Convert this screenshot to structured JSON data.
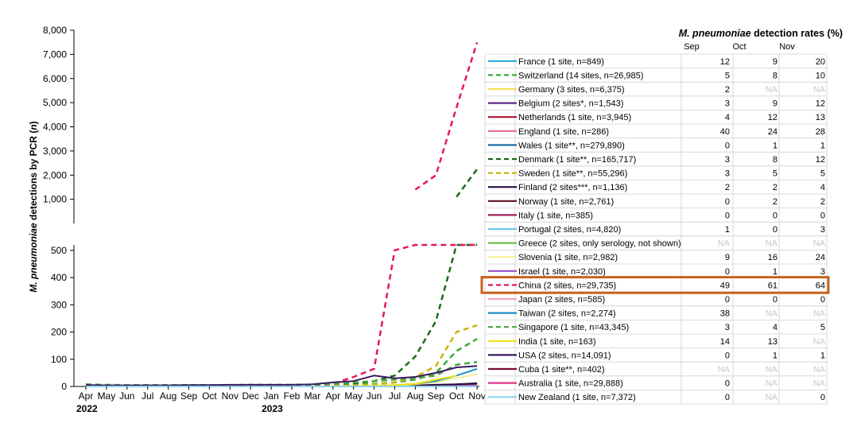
{
  "chart_data": {
    "type": "line",
    "ylabel_italic": "M. pneumoniae",
    "ylabel_rest": " detections by PCR (",
    "ylabel_n": "n",
    "ylabel_close": ")",
    "x_labels": [
      "Apr",
      "May",
      "Jun",
      "Jul",
      "Aug",
      "Sep",
      "Oct",
      "Nov",
      "Dec",
      "Jan",
      "Feb",
      "Mar",
      "Apr",
      "May",
      "Jun",
      "Jul",
      "Aug",
      "Sep",
      "Oct",
      "Nov"
    ],
    "year_labels": [
      {
        "label": "2022",
        "index": 0
      },
      {
        "label": "2023",
        "index": 9
      }
    ],
    "y_upper": {
      "range": [
        0,
        8000
      ],
      "ticks": [
        "8,000",
        "7,000",
        "6,000",
        "5,000",
        "4,000",
        "3,000",
        "2,000",
        "1,000"
      ],
      "tick_values": [
        8000,
        7000,
        6000,
        5000,
        4000,
        3000,
        2000,
        1000
      ]
    },
    "y_lower": {
      "range": [
        0,
        520
      ],
      "ticks": [
        "500",
        "400",
        "300",
        "200",
        "100",
        "0"
      ],
      "tick_values": [
        500,
        400,
        300,
        200,
        100,
        0
      ]
    },
    "table": {
      "title_italic": "M. pneumoniae",
      "title_rest": " detection rates (%)",
      "months": [
        "Sep",
        "Oct",
        "Nov"
      ]
    },
    "series": [
      {
        "name": "France (1 site, n=849)",
        "color": "#27a9e1",
        "dash": false,
        "rates": [
          "12",
          "9",
          "20"
        ],
        "values": [
          0,
          0,
          0,
          0,
          0,
          0,
          0,
          0,
          0,
          0,
          0,
          0,
          0,
          0,
          0,
          0,
          0,
          1,
          2,
          5
        ]
      },
      {
        "name": "Switzerland (14 sites, n=26,985)",
        "color": "#3aaa35",
        "dash": true,
        "rates": [
          "5",
          "8",
          "10"
        ],
        "values": [
          2,
          2,
          2,
          2,
          2,
          3,
          3,
          4,
          4,
          5,
          5,
          6,
          7,
          8,
          10,
          15,
          25,
          50,
          130,
          175
        ]
      },
      {
        "name": "Germany (3 sites, n=6,375)",
        "color": "#f2e15a",
        "dash": false,
        "rates": [
          "2",
          "NA",
          "NA"
        ],
        "values": [
          0,
          0,
          0,
          0,
          0,
          0,
          0,
          0,
          0,
          0,
          0,
          0,
          0,
          0,
          0,
          0,
          1,
          2,
          null,
          null
        ]
      },
      {
        "name": "Belgium (2 sites*, n=1,543)",
        "color": "#5b2a86",
        "dash": false,
        "rates": [
          "3",
          "9",
          "12"
        ],
        "values": [
          0,
          0,
          0,
          0,
          0,
          0,
          0,
          0,
          0,
          0,
          0,
          0,
          0,
          0,
          0,
          0,
          0,
          2,
          5,
          12
        ]
      },
      {
        "name": "Netherlands (1 site, n=3,945)",
        "color": "#b0122f",
        "dash": false,
        "rates": [
          "4",
          "12",
          "13"
        ],
        "values": [
          0,
          0,
          0,
          0,
          0,
          0,
          0,
          0,
          0,
          0,
          0,
          0,
          0,
          0,
          0,
          0,
          1,
          3,
          8,
          10
        ]
      },
      {
        "name": "England (1 site, n=286)",
        "color": "#e6679a",
        "dash": false,
        "rates": [
          "40",
          "24",
          "28"
        ],
        "values": [
          0,
          0,
          0,
          0,
          0,
          0,
          0,
          0,
          0,
          0,
          0,
          0,
          0,
          0,
          0,
          0,
          0,
          1,
          2,
          3
        ]
      },
      {
        "name": "Wales (1 site**, n=279,890)",
        "color": "#1d6fa5",
        "dash": false,
        "rates": [
          "0",
          "1",
          "1"
        ],
        "values": [
          0,
          0,
          0,
          0,
          0,
          0,
          0,
          0,
          0,
          0,
          0,
          0,
          0,
          0,
          0,
          0,
          0,
          0,
          1,
          1
        ]
      },
      {
        "name": "Denmark (1 site**, n=165,717)",
        "color": "#1e6b1a",
        "dash": true,
        "rates": [
          "3",
          "8",
          "12"
        ],
        "values": [
          2,
          2,
          2,
          2,
          3,
          3,
          3,
          3,
          4,
          4,
          4,
          5,
          6,
          10,
          20,
          40,
          110,
          240,
          1100,
          2250
        ]
      },
      {
        "name": "Sweden (1 site**, n=55,296)",
        "color": "#c9b50c",
        "dash": true,
        "rates": [
          "3",
          "5",
          "5"
        ],
        "values": [
          1,
          1,
          1,
          1,
          1,
          1,
          1,
          2,
          2,
          2,
          2,
          3,
          3,
          4,
          8,
          15,
          35,
          75,
          200,
          225
        ]
      },
      {
        "name": "Finland (2 sites***, n=1,136)",
        "color": "#2a0f3f",
        "dash": false,
        "rates": [
          "2",
          "2",
          "4"
        ],
        "values": [
          0,
          0,
          0,
          0,
          0,
          0,
          0,
          0,
          0,
          0,
          0,
          0,
          0,
          0,
          1,
          2,
          4,
          6,
          8,
          12
        ]
      },
      {
        "name": "Norway (1 site, n=2,761)",
        "color": "#5e1220",
        "dash": false,
        "rates": [
          "0",
          "2",
          "2"
        ],
        "values": [
          0,
          0,
          0,
          0,
          0,
          0,
          0,
          0,
          0,
          0,
          0,
          0,
          0,
          0,
          0,
          0,
          0,
          0,
          1,
          2
        ]
      },
      {
        "name": "Italy (1 site, n=385)",
        "color": "#a41e5a",
        "dash": false,
        "rates": [
          "0",
          "0",
          "0"
        ],
        "values": [
          0,
          0,
          0,
          0,
          0,
          0,
          0,
          0,
          0,
          0,
          0,
          0,
          0,
          0,
          0,
          0,
          0,
          0,
          0,
          0
        ]
      },
      {
        "name": "Portugal (2 sites, n=4,820)",
        "color": "#6ec6e8",
        "dash": false,
        "rates": [
          "1",
          "0",
          "3"
        ],
        "values": [
          0,
          0,
          0,
          0,
          0,
          0,
          0,
          0,
          0,
          0,
          0,
          0,
          0,
          0,
          0,
          0,
          0,
          0,
          0,
          1
        ]
      },
      {
        "name": "Greece (2 sites, only serology, not shown)",
        "color": "#6cc24a",
        "dash": false,
        "rates": [
          "NA",
          "NA",
          "NA"
        ],
        "values": []
      },
      {
        "name": "Slovenia (1 site, n=2,982)",
        "color": "#f7ef99",
        "dash": false,
        "rates": [
          "9",
          "16",
          "24"
        ],
        "values": [
          0,
          0,
          0,
          0,
          0,
          0,
          0,
          0,
          0,
          0,
          0,
          0,
          1,
          1,
          2,
          3,
          8,
          15,
          30,
          45
        ]
      },
      {
        "name": "Israel (1 site, n=2,030)",
        "color": "#9a4fc6",
        "dash": false,
        "rates": [
          "0",
          "1",
          "3"
        ],
        "values": [
          0,
          0,
          0,
          0,
          0,
          0,
          0,
          0,
          0,
          0,
          0,
          0,
          0,
          0,
          0,
          0,
          0,
          0,
          1,
          3
        ]
      },
      {
        "name": "China (2 sites, n=29,735)",
        "color": "#e8175d",
        "dash": true,
        "rates": [
          "49",
          "61",
          "64"
        ],
        "values": [
          2,
          2,
          2,
          2,
          2,
          2,
          2,
          2,
          2,
          2,
          2,
          2,
          10,
          35,
          65,
          500,
          1400,
          2000,
          4800,
          7500
        ]
      },
      {
        "name": "Japan (2 sites, n=585)",
        "color": "#f3a3c2",
        "dash": false,
        "rates": [
          "0",
          "0",
          "0"
        ],
        "values": [
          0,
          0,
          0,
          0,
          0,
          0,
          0,
          0,
          0,
          0,
          0,
          0,
          0,
          0,
          0,
          0,
          0,
          0,
          0,
          0
        ]
      },
      {
        "name": "Taiwan (2 sites, n=2,274)",
        "color": "#1b8fc9",
        "dash": false,
        "rates": [
          "38",
          "NA",
          "NA"
        ],
        "values": [
          0,
          0,
          0,
          0,
          0,
          0,
          0,
          0,
          0,
          0,
          0,
          0,
          0,
          1,
          2,
          5,
          10,
          20,
          40,
          65
        ]
      },
      {
        "name": "Singapore (1 site, n=43,345)",
        "color": "#46a93c",
        "dash": true,
        "rates": [
          "3",
          "4",
          "5"
        ],
        "values": [
          8,
          6,
          5,
          5,
          5,
          5,
          5,
          5,
          6,
          6,
          6,
          7,
          10,
          15,
          20,
          25,
          30,
          40,
          80,
          90
        ]
      },
      {
        "name": "India (1 site, n=163)",
        "color": "#f4e414",
        "dash": false,
        "rates": [
          "14",
          "13",
          "NA"
        ],
        "values": [
          0,
          0,
          0,
          0,
          0,
          0,
          0,
          0,
          0,
          0,
          0,
          0,
          0,
          1,
          2,
          5,
          10,
          25,
          40,
          null
        ]
      },
      {
        "name": "USA (2 sites, n=14,091)",
        "color": "#3b1a5e",
        "dash": false,
        "rates": [
          "0",
          "1",
          "1"
        ],
        "values": [
          5,
          4,
          4,
          4,
          4,
          5,
          5,
          6,
          6,
          6,
          6,
          8,
          15,
          20,
          40,
          30,
          35,
          50,
          70,
          75
        ]
      },
      {
        "name": "Cuba (1 site**, n=402)",
        "color": "#7a0f2b",
        "dash": false,
        "rates": [
          "NA",
          "NA",
          "NA"
        ],
        "values": [
          0,
          0,
          0,
          0,
          0,
          0,
          0,
          0,
          0,
          0,
          0,
          0,
          0,
          0,
          0,
          0,
          0,
          0,
          null,
          null
        ]
      },
      {
        "name": "Australia (1 site, n=29,888)",
        "color": "#e0338a",
        "dash": false,
        "rates": [
          "0",
          "NA",
          "NA"
        ],
        "values": [
          0,
          0,
          0,
          0,
          0,
          0,
          0,
          0,
          0,
          0,
          0,
          0,
          0,
          0,
          0,
          0,
          0,
          0,
          null,
          null
        ]
      },
      {
        "name": "New Zealand (1 site, n=7,372)",
        "color": "#8fd6f2",
        "dash": false,
        "rates": [
          "0",
          "NA",
          "0"
        ],
        "values": [
          0,
          0,
          0,
          0,
          0,
          0,
          0,
          0,
          0,
          0,
          0,
          0,
          0,
          0,
          0,
          0,
          0,
          0,
          0,
          0
        ]
      }
    ],
    "highlight": {
      "series": "China (2 sites, n=29,735)",
      "color": "#c8621d"
    },
    "grid": false,
    "legend_placement": "right table"
  }
}
